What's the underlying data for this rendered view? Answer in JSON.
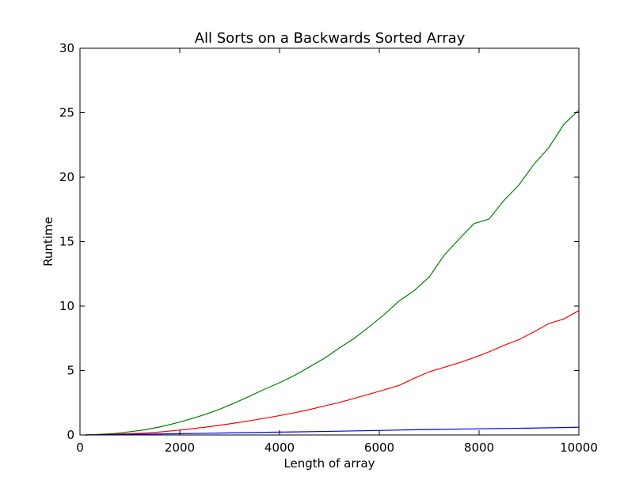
{
  "chart_data": {
    "type": "line",
    "title": "All Sorts on a Backwards Sorted Array",
    "xlabel": "Length of array",
    "ylabel": "Runtime",
    "xlim": [
      0,
      10000
    ],
    "ylim": [
      0,
      30
    ],
    "x_ticks": [
      0,
      2000,
      4000,
      6000,
      8000,
      10000
    ],
    "y_ticks": [
      0,
      5,
      10,
      15,
      20,
      25,
      30
    ],
    "grid": false,
    "series": [
      {
        "color": "#008000",
        "points": [
          [
            100,
            0.0
          ],
          [
            400,
            0.05
          ],
          [
            700,
            0.12
          ],
          [
            1000,
            0.25
          ],
          [
            1300,
            0.4
          ],
          [
            1600,
            0.62
          ],
          [
            1900,
            0.9
          ],
          [
            2200,
            1.22
          ],
          [
            2500,
            1.58
          ],
          [
            2800,
            2.0
          ],
          [
            3100,
            2.48
          ],
          [
            3400,
            3.0
          ],
          [
            3700,
            3.55
          ],
          [
            4000,
            4.05
          ],
          [
            4300,
            4.62
          ],
          [
            4600,
            5.28
          ],
          [
            4900,
            5.95
          ],
          [
            5200,
            6.75
          ],
          [
            5500,
            7.5
          ],
          [
            5800,
            8.4
          ],
          [
            6100,
            9.35
          ],
          [
            6400,
            10.4
          ],
          [
            6700,
            11.2
          ],
          [
            7000,
            12.25
          ],
          [
            7300,
            13.95
          ],
          [
            7600,
            15.2
          ],
          [
            7900,
            16.4
          ],
          [
            8200,
            16.75
          ],
          [
            8500,
            18.2
          ],
          [
            8800,
            19.4
          ],
          [
            9100,
            21.0
          ],
          [
            9400,
            22.3
          ],
          [
            9700,
            24.1
          ],
          [
            10000,
            25.2
          ]
        ]
      },
      {
        "color": "#ff0000",
        "points": [
          [
            100,
            0.0
          ],
          [
            400,
            0.03
          ],
          [
            700,
            0.06
          ],
          [
            1000,
            0.1
          ],
          [
            1300,
            0.15
          ],
          [
            1600,
            0.23
          ],
          [
            1900,
            0.34
          ],
          [
            2200,
            0.46
          ],
          [
            2500,
            0.6
          ],
          [
            2800,
            0.75
          ],
          [
            3100,
            0.92
          ],
          [
            3400,
            1.1
          ],
          [
            3700,
            1.3
          ],
          [
            4000,
            1.5
          ],
          [
            4300,
            1.72
          ],
          [
            4600,
            1.97
          ],
          [
            4900,
            2.25
          ],
          [
            5200,
            2.52
          ],
          [
            5500,
            2.84
          ],
          [
            5800,
            3.17
          ],
          [
            6100,
            3.5
          ],
          [
            6400,
            3.85
          ],
          [
            6700,
            4.4
          ],
          [
            7000,
            4.9
          ],
          [
            7300,
            5.25
          ],
          [
            7600,
            5.6
          ],
          [
            7900,
            6.0
          ],
          [
            8200,
            6.45
          ],
          [
            8500,
            6.95
          ],
          [
            8800,
            7.4
          ],
          [
            9100,
            8.0
          ],
          [
            9400,
            8.65
          ],
          [
            9700,
            9.0
          ],
          [
            10000,
            9.65
          ]
        ]
      },
      {
        "color": "#0000ff",
        "points": [
          [
            100,
            0.0
          ],
          [
            1000,
            0.05
          ],
          [
            2000,
            0.1
          ],
          [
            3000,
            0.16
          ],
          [
            4000,
            0.22
          ],
          [
            5000,
            0.28
          ],
          [
            6000,
            0.35
          ],
          [
            6500,
            0.39
          ],
          [
            7000,
            0.42
          ],
          [
            8000,
            0.48
          ],
          [
            9000,
            0.53
          ],
          [
            10000,
            0.6
          ]
        ]
      }
    ]
  }
}
